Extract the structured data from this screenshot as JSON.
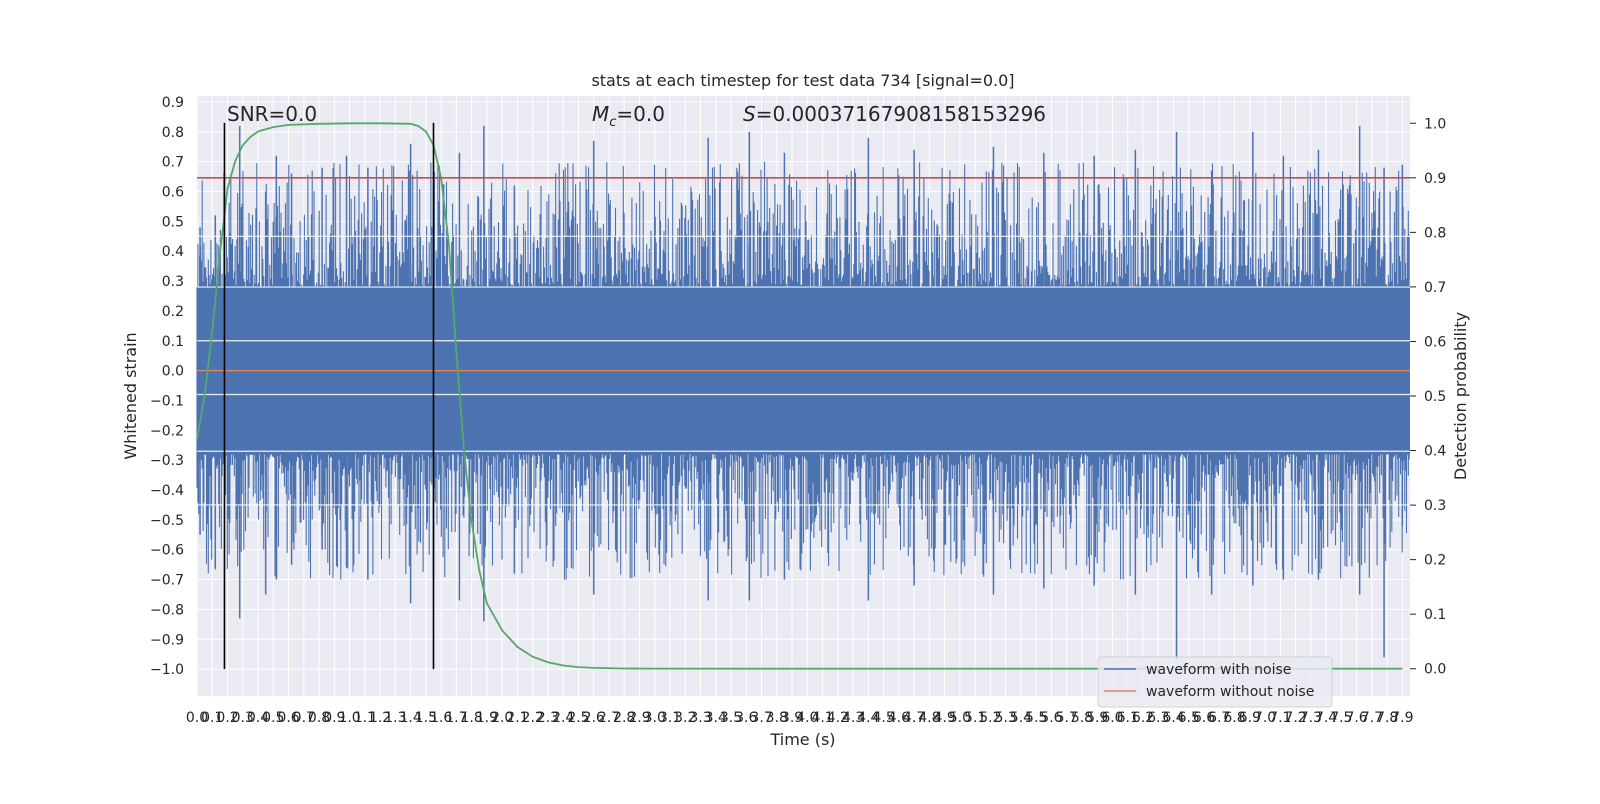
{
  "chart_data": {
    "type": "line",
    "title": "stats at each timestep for test data 734 [signal=0.0]",
    "xlabel": "Time (s)",
    "ylabel": "Whitened strain",
    "y2label": "Detection probability",
    "xlim": [
      0.0,
      7.95
    ],
    "ylim": [
      -1.09,
      0.92
    ],
    "y2lim": [
      -0.05,
      1.05
    ],
    "x_ticks": [
      0.0,
      0.1,
      0.2,
      0.3,
      0.4,
      0.5,
      0.6,
      0.7,
      0.8,
      0.9,
      1.0,
      1.1,
      1.2,
      1.3,
      1.4,
      1.5,
      1.6,
      1.7,
      1.8,
      1.9,
      2.0,
      2.1,
      2.2,
      2.3,
      2.4,
      2.5,
      2.6,
      2.7,
      2.8,
      2.9,
      3.0,
      3.1,
      3.2,
      3.3,
      3.4,
      3.5,
      3.6,
      3.7,
      3.8,
      3.9,
      4.0,
      4.1,
      4.2,
      4.3,
      4.4,
      4.5,
      4.6,
      4.7,
      4.8,
      4.9,
      5.0,
      5.1,
      5.2,
      5.3,
      5.4,
      5.5,
      5.6,
      5.7,
      5.8,
      5.9,
      6.0,
      6.1,
      6.2,
      6.3,
      6.4,
      6.5,
      6.6,
      6.7,
      6.8,
      6.9,
      7.0,
      7.1,
      7.2,
      7.3,
      7.4,
      7.5,
      7.6,
      7.7,
      7.8,
      7.9
    ],
    "y_ticks": [
      0.9,
      0.8,
      0.7,
      0.6,
      0.5,
      0.4,
      0.3,
      0.2,
      0.1,
      0.0,
      -0.1,
      -0.2,
      -0.3,
      -0.4,
      -0.5,
      -0.6,
      -0.7,
      -0.8,
      -0.9,
      -1.0
    ],
    "y2_ticks": [
      1.0,
      0.9,
      0.8,
      0.7,
      0.6,
      0.5,
      0.4,
      0.3,
      0.2,
      0.1,
      0.0
    ],
    "grid": true,
    "legend_placement": "lower-right",
    "annotations": {
      "snr": "SNR=0.0",
      "mc": "=0.0",
      "mc_symbol": "M",
      "mc_sub": "c",
      "s": "=0.00037167908158153296",
      "s_symbol": "S"
    },
    "series": [
      {
        "name": "waveform with noise",
        "color": "#4c72b0",
        "band_core": [
          -0.28,
          0.28
        ],
        "band_mid": [
          -0.45,
          0.45
        ],
        "peaks_x": [
          0.02,
          0.12,
          0.28,
          0.45,
          0.52,
          0.62,
          0.82,
          0.98,
          1.12,
          1.4,
          1.55,
          1.72,
          1.88,
          2.08,
          2.6,
          3.35,
          3.62,
          3.85,
          4.4,
          4.7,
          5.22,
          5.55,
          5.88,
          6.15,
          6.42,
          6.65,
          6.92,
          7.12,
          7.35,
          7.62,
          7.78,
          7.9
        ],
        "peaks_hi": [
          0.48,
          0.52,
          0.82,
          0.6,
          0.72,
          0.66,
          0.68,
          0.72,
          0.68,
          0.76,
          0.62,
          0.73,
          0.82,
          0.62,
          0.77,
          0.78,
          0.8,
          0.73,
          0.78,
          0.74,
          0.75,
          0.73,
          0.72,
          0.74,
          0.8,
          0.67,
          0.8,
          0.72,
          0.74,
          0.82,
          0.68,
          0.69
        ],
        "peaks_lo": [
          -0.55,
          -0.66,
          -0.83,
          -0.75,
          -0.7,
          -0.65,
          -0.6,
          -0.66,
          -0.7,
          -0.78,
          -0.7,
          -0.77,
          -0.84,
          -0.68,
          -0.75,
          -0.77,
          -0.77,
          -0.7,
          -0.77,
          -0.72,
          -0.75,
          -0.73,
          -0.72,
          -0.75,
          -0.97,
          -0.75,
          -0.72,
          -0.7,
          -0.7,
          -0.75,
          -0.96,
          -0.52
        ]
      },
      {
        "name": "waveform without noise",
        "color": "#dd8452",
        "values": [
          0.0
        ]
      },
      {
        "name": "",
        "axis": "right",
        "color": "#55a868",
        "x": [
          0.0,
          0.05,
          0.1,
          0.15,
          0.2,
          0.25,
          0.3,
          0.35,
          0.4,
          0.5,
          0.6,
          0.8,
          1.0,
          1.2,
          1.4,
          1.45,
          1.5,
          1.55,
          1.6,
          1.65,
          1.7,
          1.75,
          1.8,
          1.85,
          1.9,
          2.0,
          2.1,
          2.2,
          2.3,
          2.4,
          2.5,
          2.6,
          2.8,
          3.0,
          4.0,
          5.0,
          6.0,
          7.0,
          7.9
        ],
        "y": [
          0.42,
          0.5,
          0.62,
          0.76,
          0.88,
          0.93,
          0.96,
          0.975,
          0.985,
          0.993,
          0.997,
          0.999,
          1.0,
          1.0,
          0.999,
          0.995,
          0.985,
          0.96,
          0.9,
          0.78,
          0.58,
          0.4,
          0.27,
          0.18,
          0.12,
          0.07,
          0.04,
          0.022,
          0.012,
          0.006,
          0.003,
          0.0015,
          0.0005,
          0.0002,
          0.0,
          0.0,
          0.0,
          0.0,
          0.0
        ]
      }
    ],
    "hlines": [
      {
        "axis": "right",
        "value": 0.9,
        "color": "#c44e52"
      }
    ],
    "vlines": [
      {
        "x": 0.18,
        "y_from": -1.0,
        "y_to": 0.83,
        "color": "#000000"
      },
      {
        "x": 1.55,
        "y_from": -1.0,
        "y_to": 0.83,
        "color": "#000000"
      }
    ]
  }
}
